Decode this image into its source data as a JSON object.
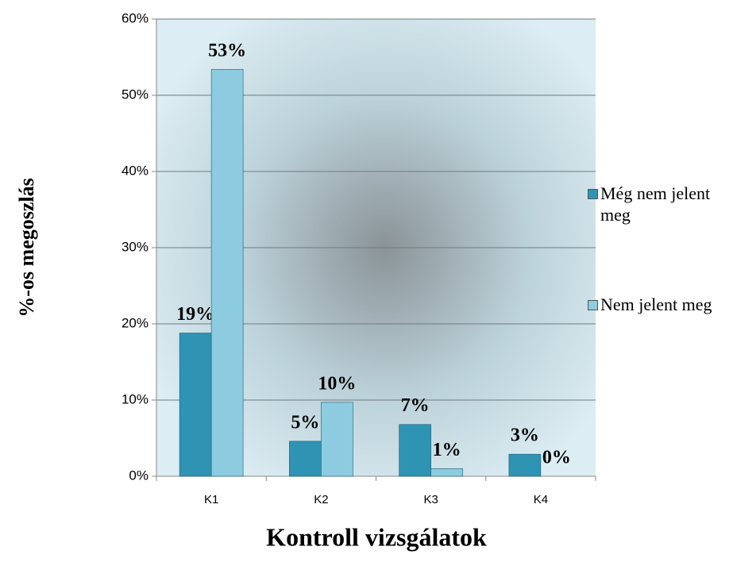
{
  "chart_data": {
    "type": "bar",
    "xlabel": "Kontroll vizsgálatok",
    "ylabel": "%-os megoszlás",
    "categories": [
      "K1",
      "K2",
      "K3",
      "K4"
    ],
    "series": [
      {
        "name": "Még nem jelent meg",
        "color": "#2f93b3",
        "values": [
          18.8,
          4.6,
          6.8,
          2.9
        ],
        "value_labels": [
          "19%",
          "5%",
          "7%",
          "3%"
        ]
      },
      {
        "name": "Nem jelent meg",
        "color": "#8ccbe0",
        "values": [
          53.4,
          9.7,
          1.0,
          0
        ],
        "value_labels": [
          "53%",
          "10%",
          "1%",
          "0%"
        ]
      }
    ],
    "ylim": [
      0,
      60
    ],
    "yticks": [
      {
        "value": 0,
        "label": "0%"
      },
      {
        "value": 10,
        "label": "10%"
      },
      {
        "value": 20,
        "label": "20%"
      },
      {
        "value": 30,
        "label": "30%"
      },
      {
        "value": 40,
        "label": "40%"
      },
      {
        "value": 50,
        "label": "50%"
      },
      {
        "value": 60,
        "label": "60%"
      }
    ],
    "grid": true,
    "legend": "right"
  }
}
